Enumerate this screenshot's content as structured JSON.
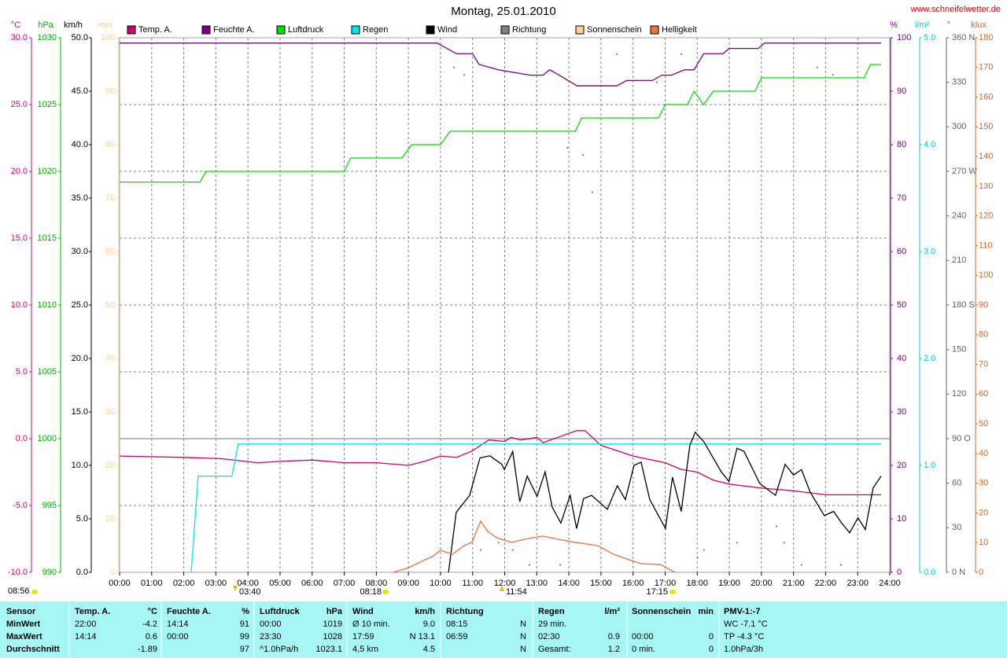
{
  "chart_data": {
    "type": "line",
    "title": "Montag, 25.01.2010",
    "source": "www.schneifelwetter.de",
    "grid": true,
    "xlim": [
      0,
      24
    ],
    "xticks": [
      {
        "value": 0,
        "label": "00:00"
      },
      {
        "value": 1,
        "label": "01:00"
      },
      {
        "value": 2,
        "label": "02:00"
      },
      {
        "value": 3,
        "label": "03:00"
      },
      {
        "value": 4,
        "label": "04:00"
      },
      {
        "value": 5,
        "label": "05:00"
      },
      {
        "value": 6,
        "label": "06:00"
      },
      {
        "value": 7,
        "label": "07:00"
      },
      {
        "value": 8,
        "label": "08:00"
      },
      {
        "value": 9,
        "label": "09:00"
      },
      {
        "value": 10,
        "label": "10:00"
      },
      {
        "value": 11,
        "label": "11:00"
      },
      {
        "value": 12,
        "label": "12:00"
      },
      {
        "value": 13,
        "label": "13:00"
      },
      {
        "value": 14,
        "label": "14:00"
      },
      {
        "value": 15,
        "label": "15:00"
      },
      {
        "value": 16,
        "label": "16:00"
      },
      {
        "value": 17,
        "label": "17:00"
      },
      {
        "value": 18,
        "label": "18:00"
      },
      {
        "value": 19,
        "label": "19:00"
      },
      {
        "value": 20,
        "label": "20:00"
      },
      {
        "value": 21,
        "label": "21:00"
      },
      {
        "value": 22,
        "label": "22:00"
      },
      {
        "value": 23,
        "label": "23:00"
      },
      {
        "value": 24,
        "label": "24:00"
      }
    ],
    "axes": [
      {
        "unit": "°C",
        "side": "left",
        "color": "#e0007a",
        "lim": [
          -10,
          30
        ],
        "ticks": [
          {
            "value": -10,
            "label": "-10.0"
          },
          {
            "value": -5,
            "label": "-5.0"
          },
          {
            "value": 0,
            "label": "0.0"
          },
          {
            "value": 5,
            "label": "5.0"
          },
          {
            "value": 10,
            "label": "10.0"
          },
          {
            "value": 15,
            "label": "15.0"
          },
          {
            "value": 20,
            "label": "20.0"
          },
          {
            "value": 25,
            "label": "25.0"
          },
          {
            "value": 30,
            "label": "30.0"
          }
        ]
      },
      {
        "unit": "hPa",
        "side": "left",
        "color": "#00b000",
        "lim": [
          990,
          1030
        ],
        "ticks": [
          990,
          995,
          1000,
          1005,
          1010,
          1015,
          1020,
          1025,
          1030
        ]
      },
      {
        "unit": "km/h",
        "side": "left",
        "color": "#000000",
        "lim": [
          0,
          50
        ],
        "ticks": [
          {
            "value": 0,
            "label": "0.0"
          },
          {
            "value": 5,
            "label": "5.0"
          },
          {
            "value": 10,
            "label": "10.0"
          },
          {
            "value": 15,
            "label": "15.0"
          },
          {
            "value": 20,
            "label": "20.0"
          },
          {
            "value": 25,
            "label": "25.0"
          },
          {
            "value": 30,
            "label": "30.0"
          },
          {
            "value": 35,
            "label": "35.0"
          },
          {
            "value": 40,
            "label": "40.0"
          },
          {
            "value": 45,
            "label": "45.0"
          },
          {
            "value": 50,
            "label": "50.0"
          }
        ]
      },
      {
        "unit": "min",
        "side": "left",
        "color": "#ffd098",
        "lim": [
          0,
          100
        ],
        "ticks": [
          0,
          10,
          20,
          30,
          40,
          50,
          60,
          70,
          80,
          90,
          100
        ]
      },
      {
        "unit": "%",
        "side": "right",
        "color": "#800080",
        "lim": [
          0,
          100
        ],
        "ticks": [
          0,
          10,
          20,
          30,
          40,
          50,
          60,
          70,
          80,
          90,
          100
        ]
      },
      {
        "unit": "l/m²",
        "side": "right",
        "color": "#00d0d0",
        "lim": [
          0,
          5
        ],
        "ticks": [
          {
            "value": 0,
            "label": "0.0"
          },
          {
            "value": 1,
            "label": "1.0"
          },
          {
            "value": 2,
            "label": "2.0"
          },
          {
            "value": 3,
            "label": "3.0"
          },
          {
            "value": 4,
            "label": "4.0"
          },
          {
            "value": 5,
            "label": "5.0"
          }
        ]
      },
      {
        "unit": "°",
        "side": "right",
        "color": "#606060",
        "lim": [
          0,
          360
        ],
        "ticks": [
          {
            "value": 0,
            "label": "0 N"
          },
          30,
          60,
          {
            "value": 90,
            "label": "90 O"
          },
          120,
          150,
          {
            "value": 180,
            "label": "180 S"
          },
          210,
          240,
          {
            "value": 270,
            "label": "270 W"
          },
          300,
          330,
          {
            "value": 360,
            "label": "360 N"
          }
        ]
      },
      {
        "unit": "klux",
        "side": "right",
        "color": "#e06020",
        "lim": [
          0,
          180
        ],
        "ticks": [
          0,
          10,
          20,
          30,
          40,
          50,
          60,
          70,
          80,
          90,
          100,
          110,
          120,
          130,
          140,
          150,
          160,
          170,
          180
        ]
      }
    ],
    "series": [
      {
        "name": "Temp. A.",
        "color": "#d0006a",
        "axis": 0,
        "x": [
          0,
          2,
          3.2,
          4.3,
          5,
          6,
          7,
          8,
          9,
          9.5,
          10,
          10.5,
          11,
          11.5,
          12,
          12.2,
          12.5,
          13,
          13.2,
          14,
          14.25,
          14.5,
          15,
          16,
          17,
          17.5,
          18,
          18.5,
          19,
          20,
          21,
          22,
          23,
          23.73
        ],
        "values": [
          -1.3,
          -1.4,
          -1.5,
          -1.8,
          -1.7,
          -1.6,
          -1.8,
          -1.8,
          -2.0,
          -1.7,
          -1.3,
          -1.4,
          -0.9,
          -0.1,
          -0.2,
          0.1,
          -0.1,
          0.1,
          -0.3,
          0.4,
          0.6,
          0.6,
          -0.5,
          -1.3,
          -1.8,
          -2.3,
          -2.5,
          -3.1,
          -3.4,
          -3.7,
          -3.9,
          -4.2,
          -4.2,
          -4.2
        ]
      },
      {
        "name": "Feuchte A.",
        "color": "#800080",
        "axis": 4,
        "x": [
          0,
          9.9,
          10.5,
          11.0,
          11.2,
          11.8,
          12.8,
          13.2,
          13.4,
          13.7,
          14.25,
          15.5,
          15.8,
          16.6,
          16.9,
          17.2,
          17.6,
          17.9,
          18.2,
          18.8,
          19.0,
          19.9,
          20.1,
          23.73
        ],
        "values": [
          99,
          99,
          97,
          97,
          95,
          94,
          93,
          93,
          94,
          93,
          91,
          91,
          92,
          92,
          93,
          93,
          94,
          94,
          97,
          97,
          98,
          98,
          99,
          99
        ]
      },
      {
        "name": "Luftdruck",
        "color": "#00e000",
        "axis": 1,
        "x": [
          0,
          2.5,
          2.7,
          7,
          7.2,
          8.8,
          9.1,
          10,
          10.3,
          14.2,
          14.4,
          16.8,
          17.0,
          17.7,
          17.9,
          18.2,
          18.5,
          19.8,
          20.0,
          23.2,
          23.4,
          23.73
        ],
        "values": [
          1019.2,
          1019.2,
          1020,
          1020,
          1021,
          1021,
          1022,
          1022,
          1023,
          1023,
          1024,
          1024,
          1025,
          1025,
          1026,
          1025,
          1026,
          1026,
          1027,
          1027,
          1028,
          1028
        ]
      },
      {
        "name": "Regen",
        "color": "#00e8e8",
        "axis": 5,
        "x": [
          2.23,
          2.45,
          3.5,
          3.7,
          23.73
        ],
        "values": [
          0,
          0.9,
          0.9,
          1.2,
          1.2
        ]
      },
      {
        "name": "Wind",
        "color": "#000000",
        "axis": 2,
        "x": [
          10.25,
          10.49,
          10.91,
          11.23,
          11.54,
          11.91,
          11.99,
          12.25,
          12.47,
          12.7,
          13.01,
          13.26,
          13.48,
          13.75,
          14.04,
          14.24,
          14.46,
          14.71,
          15.2,
          15.51,
          15.76,
          16.03,
          16.25,
          16.52,
          17.01,
          17.23,
          17.5,
          17.77,
          17.94,
          18.21,
          18.75,
          18.99,
          19.24,
          19.46,
          19.95,
          20.44,
          20.74,
          21.0,
          21.25,
          21.52,
          21.96,
          22.25,
          22.5,
          22.75,
          23.01,
          23.24,
          23.48,
          23.73
        ],
        "values": [
          0,
          5.6,
          7.2,
          10.7,
          10.9,
          10.1,
          9.6,
          11.3,
          6.6,
          9.0,
          7.1,
          9.4,
          6.1,
          4.6,
          7.2,
          4.1,
          6.9,
          7.2,
          5.9,
          8.1,
          6.8,
          10.0,
          10.3,
          6.8,
          4.1,
          8.9,
          5.7,
          11.9,
          13.1,
          12.2,
          9.4,
          8.5,
          11.6,
          11.3,
          8.3,
          7.2,
          10.1,
          9.1,
          9.6,
          7.5,
          5.3,
          5.7,
          4.6,
          3.7,
          5.1,
          4.0,
          7.9,
          9.0
        ]
      },
      {
        "name": "Richtung",
        "color": "#808080",
        "axis": 6,
        "type": "scatter",
        "x": [
          10.42,
          10.74,
          13.95,
          14.44,
          14.73,
          15.49,
          16.74,
          17.5,
          21.74,
          22.23,
          11.25,
          11.81,
          12.25,
          12.77,
          13.73,
          18.01,
          18.21,
          19.24,
          20.47,
          20.71,
          21.25,
          22.48
        ],
        "values": [
          340,
          335,
          286,
          281,
          256,
          349,
          330,
          349,
          340,
          335,
          15,
          20,
          15,
          5,
          5,
          10,
          15,
          20,
          31,
          20,
          5,
          5
        ]
      },
      {
        "name": "Sonnenschein",
        "color": "#ffd098",
        "axis": 3,
        "x": [],
        "values": []
      },
      {
        "name": "Helligkeit",
        "color": "#f07040",
        "axis": 7,
        "x": [
          8.53,
          9.02,
          9.51,
          9.75,
          10.0,
          10.37,
          10.74,
          10.98,
          11.25,
          11.47,
          11.76,
          12.21,
          12.75,
          13.19,
          13.68,
          14.17,
          14.9,
          15.39,
          15.88,
          16.25,
          16.86,
          17.3
        ],
        "values": [
          0,
          1.6,
          4.2,
          5.3,
          7.4,
          6.1,
          9.0,
          10.1,
          17.2,
          13.8,
          11.6,
          10.1,
          11.4,
          12.2,
          11.1,
          10.1,
          9.0,
          6.1,
          4.2,
          2.9,
          2.6,
          0
        ]
      }
    ],
    "annotations": [
      "08:56",
      "03:40",
      "08:18",
      "11:54",
      "17:15"
    ]
  },
  "table": {
    "rows": [
      [
        "Sensor",
        [
          "Temp. A.",
          "°C"
        ],
        [
          "Feuchte A.",
          "%"
        ],
        [
          "Luftdruck",
          "hPa"
        ],
        [
          "Wind",
          "km/h"
        ],
        [
          "Richtung",
          null
        ],
        [
          "Regen",
          "l/m²"
        ],
        [
          "Sonnenschein",
          "min"
        ],
        [
          "PMV-1:-7",
          null
        ]
      ],
      [
        "MinWert",
        [
          "22:00",
          "-4.2"
        ],
        [
          "14:14",
          "91"
        ],
        [
          "00:00",
          "1019"
        ],
        [
          "Ø 10 min.",
          "9.0"
        ],
        [
          "08:15",
          "N"
        ],
        [
          "29 min.",
          null
        ],
        [
          null,
          null
        ],
        [
          "WC -7.1 °C",
          null
        ]
      ],
      [
        "MaxWert",
        [
          "14:14",
          "0.6"
        ],
        [
          "00:00",
          "99"
        ],
        [
          "23:30",
          "1028"
        ],
        [
          "17:59",
          "N 13.1"
        ],
        [
          "06:59",
          "N"
        ],
        [
          "02:30",
          "0.9"
        ],
        [
          "00:00",
          "0"
        ],
        [
          "TP -4.3 °C",
          null
        ]
      ],
      [
        "Durchschnitt",
        [
          null,
          "-1.89"
        ],
        [
          null,
          "97"
        ],
        [
          "^1.0hPa/h",
          "1023.1"
        ],
        [
          "4,5 km",
          "4.5"
        ],
        [
          null,
          "N"
        ],
        [
          "Gesamt:",
          "1.2"
        ],
        [
          "0 min.",
          "0"
        ],
        [
          "1.0hPa/3h",
          null
        ]
      ]
    ]
  }
}
